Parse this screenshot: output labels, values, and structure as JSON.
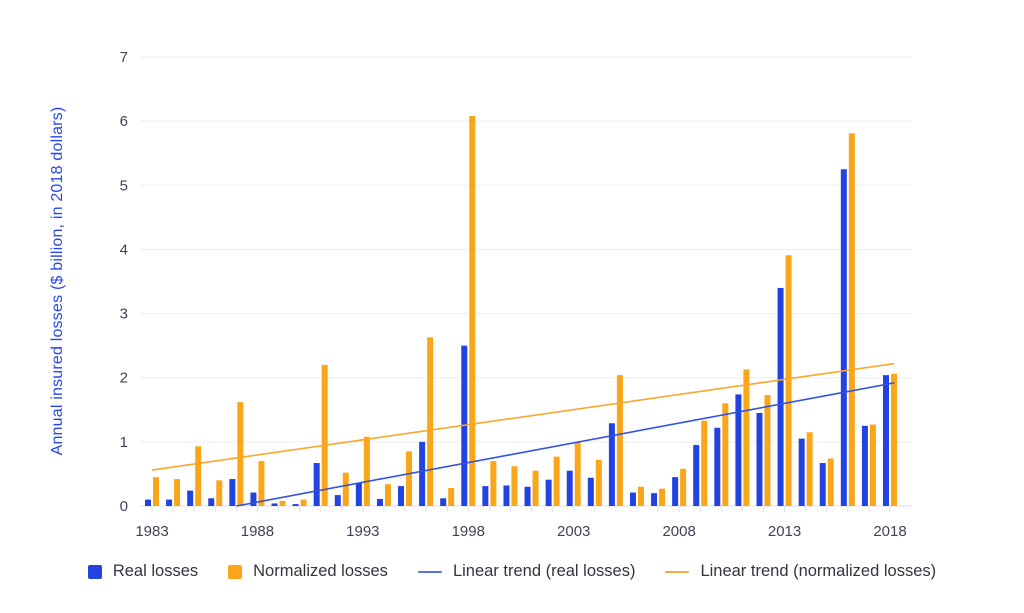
{
  "page": {
    "background": "#ffffff"
  },
  "chart_data": {
    "type": "bar",
    "title": "",
    "xlabel": "",
    "ylabel": "Annual insured losses ($ billion, in 2018 dollars)",
    "ylim": [
      0,
      7
    ],
    "y_ticks": [
      0,
      1,
      2,
      3,
      4,
      5,
      6,
      7
    ],
    "x_labeled_ticks": [
      1983,
      1988,
      1993,
      1998,
      2003,
      2008,
      2013,
      2018
    ],
    "grid": true,
    "legend_position": "bottom",
    "categories": [
      1983,
      1984,
      1985,
      1986,
      1987,
      1988,
      1989,
      1990,
      1991,
      1992,
      1993,
      1994,
      1995,
      1996,
      1997,
      1998,
      1999,
      2000,
      2001,
      2002,
      2003,
      2004,
      2005,
      2006,
      2007,
      2008,
      2009,
      2010,
      2011,
      2012,
      2013,
      2014,
      2015,
      2016,
      2017,
      2018
    ],
    "series": [
      {
        "name": "Real losses",
        "color": "#2343e0",
        "values": [
          0.1,
          0.1,
          0.24,
          0.12,
          0.42,
          0.21,
          0.04,
          0.03,
          0.67,
          0.17,
          0.36,
          0.11,
          0.31,
          1.0,
          0.12,
          2.5,
          0.31,
          0.32,
          0.3,
          0.41,
          0.55,
          0.44,
          1.29,
          0.21,
          0.2,
          0.45,
          0.95,
          1.22,
          1.74,
          1.45,
          3.4,
          1.05,
          0.67,
          5.25,
          1.25,
          2.04
        ]
      },
      {
        "name": "Normalized losses",
        "color": "#faa61a",
        "values": [
          0.45,
          0.42,
          0.93,
          0.4,
          1.62,
          0.7,
          0.08,
          0.1,
          2.2,
          0.52,
          1.08,
          0.34,
          0.85,
          2.63,
          0.28,
          6.08,
          0.7,
          0.62,
          0.55,
          0.77,
          0.99,
          0.72,
          2.04,
          0.3,
          0.27,
          0.58,
          1.33,
          1.6,
          2.13,
          1.73,
          3.91,
          1.15,
          0.74,
          5.81,
          1.27,
          2.06
        ]
      }
    ],
    "trend_lines": [
      {
        "name": "Linear trend (real losses)",
        "color": "#3353d9",
        "start_year": 1987.0,
        "start_value": 0.0,
        "end_year": 2018.2,
        "end_value": 1.92
      },
      {
        "name": "Linear trend (normalized losses)",
        "color": "#f9a62a",
        "start_year": 1983.0,
        "start_value": 0.56,
        "end_year": 2018.2,
        "end_value": 2.22
      }
    ],
    "legend": [
      {
        "label": "Real losses",
        "swatch": "square",
        "color": "#2343e0"
      },
      {
        "label": "Normalized losses",
        "swatch": "square",
        "color": "#faa61a"
      },
      {
        "label": "Linear trend (real losses)",
        "swatch": "line",
        "color": "#5b74dd"
      },
      {
        "label": "Linear trend (normalized losses)",
        "swatch": "line",
        "color": "#f9ab33"
      }
    ],
    "colors": {
      "axis_text": "#3e4359",
      "grid_line": "#ededed",
      "baseline": "#dfe2e8",
      "tick_mark": "#dfe2e8",
      "ylabel_text": "#2a46ee",
      "legend_text": "#33343f"
    }
  }
}
